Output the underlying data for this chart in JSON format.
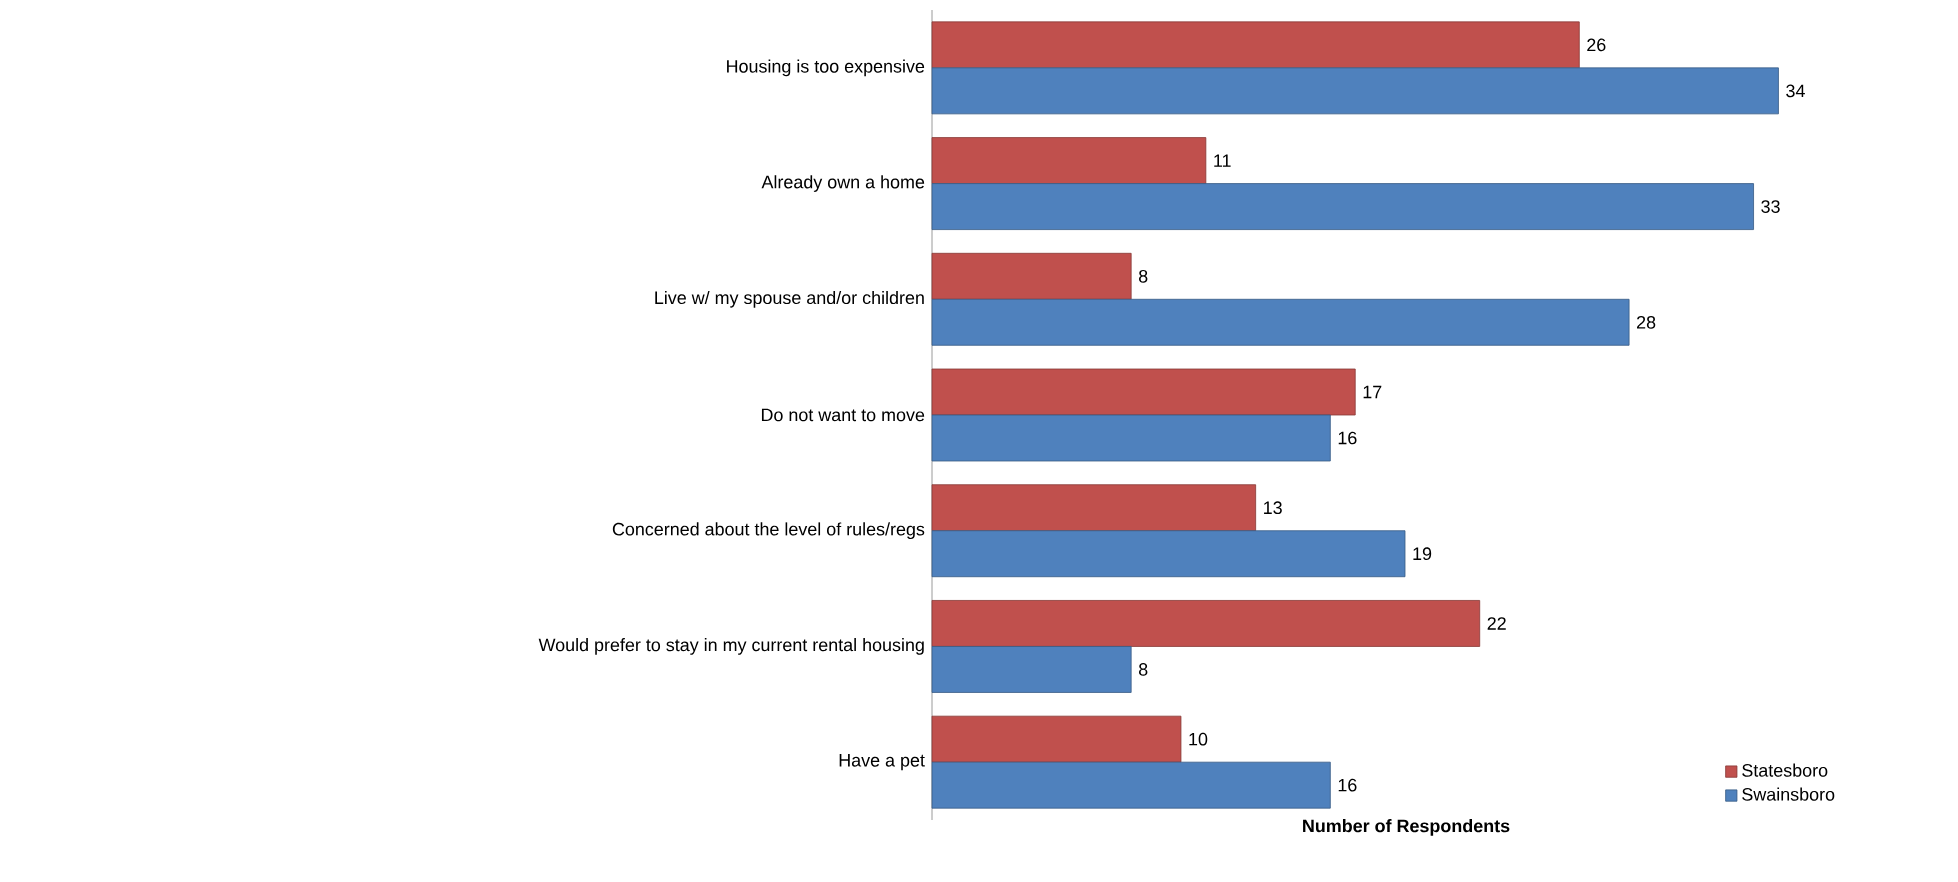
{
  "chart_data": {
    "type": "bar",
    "orientation": "horizontal",
    "xlabel": "Number of Respondents",
    "categories": [
      "Housing is too expensive",
      "Already own a home",
      "Live w/ my spouse and/or children",
      "Do not want to move",
      "Concerned about the level of rules/regs",
      "Would prefer to stay in my current rental housing",
      "Have a pet"
    ],
    "series": [
      {
        "name": "Statesboro",
        "color": "#c0504d",
        "values": [
          26,
          11,
          8,
          17,
          13,
          22,
          10
        ]
      },
      {
        "name": "Swainsboro",
        "color": "#4f81bd",
        "values": [
          34,
          33,
          28,
          16,
          19,
          8,
          16
        ]
      }
    ],
    "data_labels": true,
    "legend": "bottom right"
  }
}
